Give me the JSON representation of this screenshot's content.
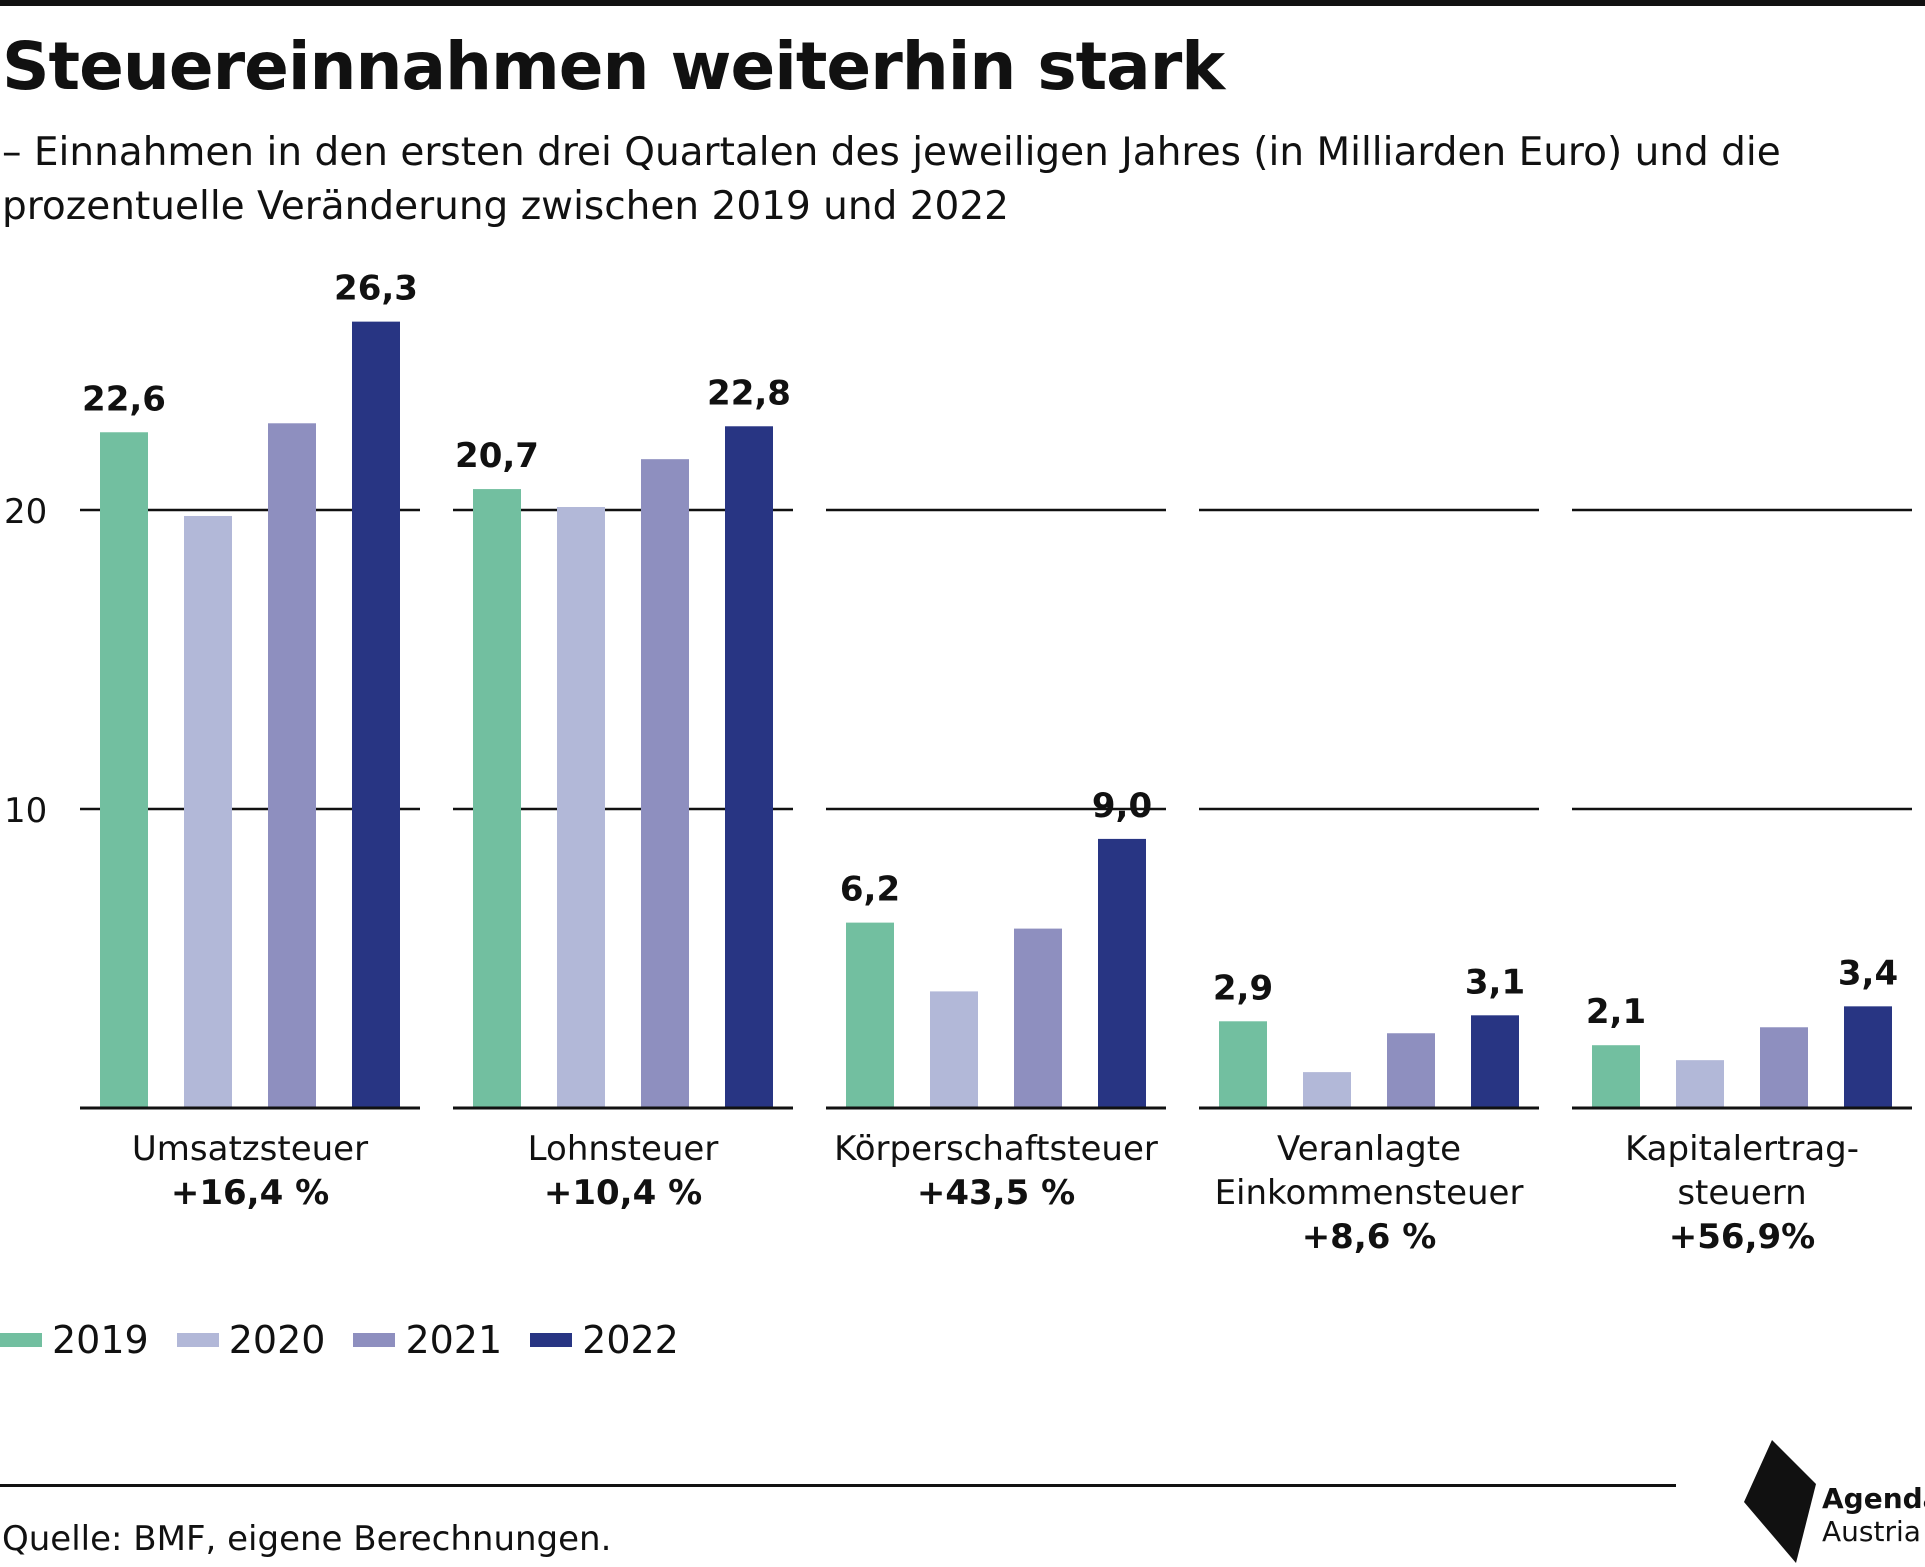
{
  "header": {
    "title": "Steuereinnahmen weiterhin stark",
    "subtitle": "– Einnahmen in den ersten drei Quartalen des jeweiligen Jahres (in Milliarden Euro) und die prozentuelle Veränderung zwischen 2019 und 2022"
  },
  "chart_data": {
    "type": "bar",
    "title": "Steuereinnahmen weiterhin stark",
    "ylim": [
      0,
      30
    ],
    "yticks": [
      10,
      20
    ],
    "ytick_labels": [
      "10",
      "20"
    ],
    "grid": true,
    "legend_position": "bottom-left",
    "categories": [
      {
        "lines": [
          "Umsatzsteuer"
        ],
        "change": "+16,4 %"
      },
      {
        "lines": [
          "Lohnsteuer"
        ],
        "change": "+10,4 %"
      },
      {
        "lines": [
          "Körperschaftsteuer"
        ],
        "change": "+43,5 %"
      },
      {
        "lines": [
          "Veranlagte",
          "Einkommensteuer"
        ],
        "change": "+8,6 %"
      },
      {
        "lines": [
          "Kapitalertrag-",
          "steuern"
        ],
        "change": "+56,9%"
      }
    ],
    "series": [
      {
        "name": "2019",
        "color": "#72bfa0",
        "values": [
          22.6,
          20.7,
          6.2,
          2.9,
          2.1
        ],
        "labels": [
          "22,6",
          "20,7",
          "6,2",
          "2,9",
          "2,1"
        ]
      },
      {
        "name": "2020",
        "color": "#b2b8d8",
        "values": [
          19.8,
          20.1,
          3.9,
          1.2,
          1.6
        ],
        "labels": [
          "",
          "",
          "",
          "",
          ""
        ]
      },
      {
        "name": "2021",
        "color": "#8e8fbf",
        "values": [
          22.9,
          21.7,
          6.0,
          2.5,
          2.7
        ],
        "labels": [
          "",
          "",
          "",
          "",
          ""
        ]
      },
      {
        "name": "2022",
        "color": "#283583",
        "values": [
          26.3,
          22.8,
          9.0,
          3.1,
          3.4
        ],
        "labels": [
          "26,3",
          "22,8",
          "9,0",
          "3,1",
          "3,4"
        ]
      }
    ]
  },
  "footer": {
    "source": "Quelle: BMF, eigene Berechnungen."
  },
  "logo": {
    "line1": "Agenda",
    "line2": "Austria"
  }
}
